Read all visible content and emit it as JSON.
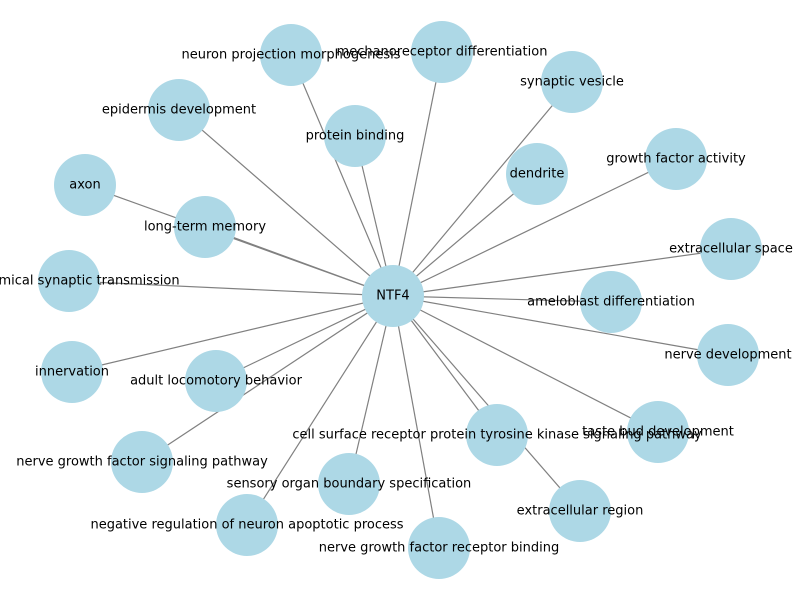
{
  "graph": {
    "center": {
      "id": "ntf4",
      "label": "NTF4"
    },
    "nodes": [
      {
        "id": "neuron-projection-morphogenesis",
        "label": "neuron projection morphogenesis"
      },
      {
        "id": "mechanoreceptor-differentiation",
        "label": "mechanoreceptor differentiation"
      },
      {
        "id": "synaptic-vesicle",
        "label": "synaptic vesicle"
      },
      {
        "id": "epidermis-development",
        "label": "epidermis development"
      },
      {
        "id": "protein-binding",
        "label": "protein binding"
      },
      {
        "id": "growth-factor-activity",
        "label": "growth factor activity"
      },
      {
        "id": "dendrite",
        "label": "dendrite"
      },
      {
        "id": "axon",
        "label": "axon"
      },
      {
        "id": "long-term-memory",
        "label": "long-term memory"
      },
      {
        "id": "extracellular-space",
        "label": "extracellular space"
      },
      {
        "id": "chemical-synaptic-transmission",
        "label": "of chemical synaptic transmission"
      },
      {
        "id": "ameloblast-differentiation",
        "label": "ameloblast differentiation"
      },
      {
        "id": "nerve-development",
        "label": "nerve development"
      },
      {
        "id": "innervation",
        "label": "innervation"
      },
      {
        "id": "adult-locomotory-behavior",
        "label": "adult locomotory behavior"
      },
      {
        "id": "taste-bud-development",
        "label": "taste bud development"
      },
      {
        "id": "cell-surface-receptor",
        "label": "cell surface receptor protein tyrosine kinase signaling pathway"
      },
      {
        "id": "nerve-growth-factor-signaling",
        "label": "nerve growth factor signaling pathway"
      },
      {
        "id": "sensory-organ-boundary",
        "label": "sensory organ boundary specification"
      },
      {
        "id": "extracellular-region",
        "label": "extracellular region"
      },
      {
        "id": "negative-regulation-apoptotic",
        "label": "negative regulation of neuron apoptotic process"
      },
      {
        "id": "nerve-growth-factor-receptor-binding",
        "label": "nerve growth factor receptor binding"
      }
    ],
    "colors": {
      "node": "#add8e6",
      "edge": "#808080",
      "text": "#000000"
    }
  }
}
